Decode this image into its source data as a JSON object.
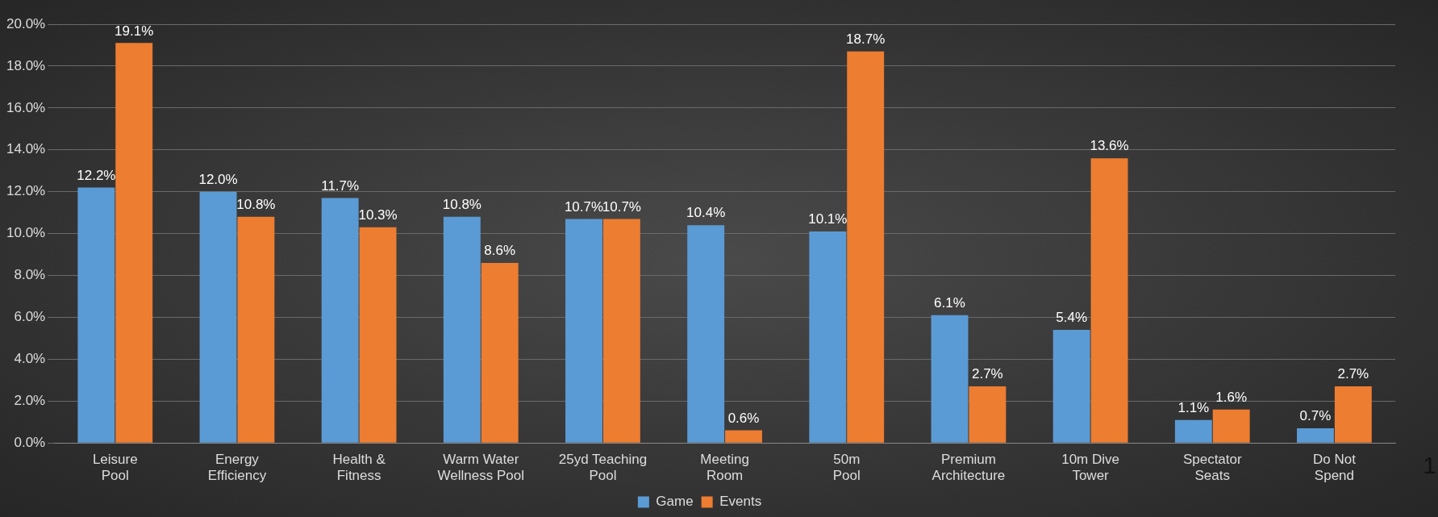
{
  "chart_data": {
    "type": "bar",
    "categories": [
      "Leisure Pool",
      "Energy Efficiency",
      "Health & Fitness",
      "Warm Water Wellness Pool",
      "25yd Teaching Pool",
      "Meeting Room",
      "50m Pool",
      "Premium Architecture",
      "10m Dive Tower",
      "Spectator Seats",
      "Do Not Spend"
    ],
    "series": [
      {
        "name": "Game",
        "color": "#5b9bd5",
        "values": [
          12.2,
          12.0,
          11.7,
          10.8,
          10.7,
          10.4,
          10.1,
          6.1,
          5.4,
          1.1,
          0.7
        ],
        "value_labels": [
          "12.2%",
          "12.0%",
          "11.7%",
          "10.8%",
          "10.7%",
          "10.4%",
          "10.1%",
          "6.1%",
          "5.4%",
          "1.1%",
          "0.7%"
        ]
      },
      {
        "name": "Events",
        "color": "#ed7d31",
        "values": [
          19.1,
          10.8,
          10.3,
          8.6,
          10.7,
          0.6,
          18.7,
          2.7,
          13.6,
          1.6,
          2.7
        ],
        "value_labels": [
          "19.1%",
          "10.8%",
          "10.3%",
          "8.6%",
          "10.7%",
          "0.6%",
          "18.7%",
          "2.7%",
          "13.6%",
          "1.6%",
          "2.7%"
        ]
      }
    ],
    "ylim": [
      0,
      20
    ],
    "yticks": [
      {
        "value": 0,
        "label": "0.0%"
      },
      {
        "value": 2,
        "label": "2.0%"
      },
      {
        "value": 4,
        "label": "4.0%"
      },
      {
        "value": 6,
        "label": "6.0%"
      },
      {
        "value": 8,
        "label": "8.0%"
      },
      {
        "value": 10,
        "label": "10.0%"
      },
      {
        "value": 12,
        "label": "12.0%"
      },
      {
        "value": 14,
        "label": "14.0%"
      },
      {
        "value": 16,
        "label": "16.0%"
      },
      {
        "value": 18,
        "label": "18.0%"
      },
      {
        "value": 20,
        "label": "20.0%"
      }
    ],
    "grid": "y",
    "legend": "bottom",
    "annotations": [
      "1"
    ]
  }
}
